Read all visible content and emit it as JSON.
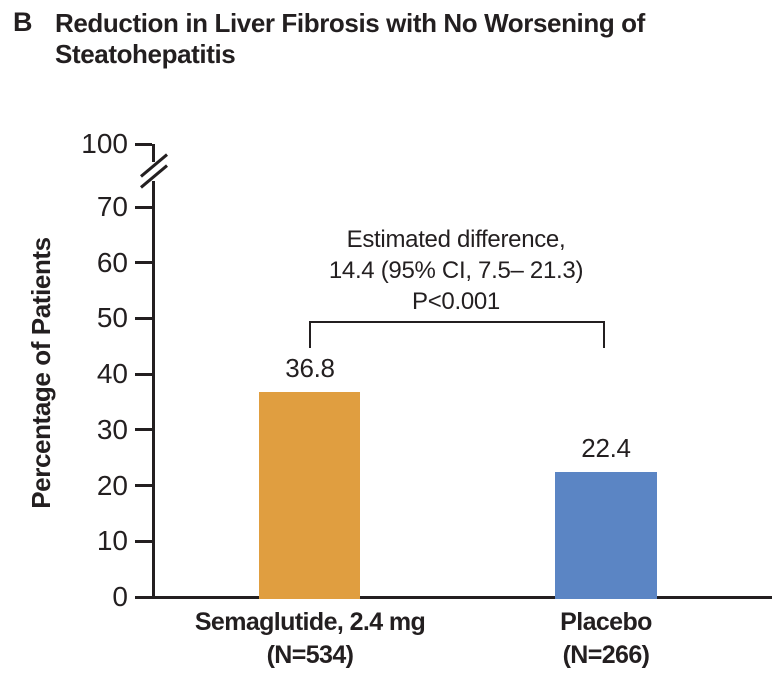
{
  "panel_label": "B",
  "title": {
    "line1": "Reduction in Liver Fibrosis with No Worsening of",
    "line2": "Steatohepatitis"
  },
  "chart_data": {
    "type": "bar",
    "title": "Reduction in Liver Fibrosis with No Worsening of Steatohepatitis",
    "ylabel": "Percentage of Patients",
    "ylim": [
      0,
      100
    ],
    "yticks": [
      100,
      70,
      60,
      50,
      40,
      30,
      20,
      10,
      0
    ],
    "axis_break_between": [
      70,
      100
    ],
    "grid": false,
    "legend": false,
    "bars": [
      {
        "category": "Semaglutide, 2.4 mg",
        "n": "(N=534)",
        "value": 36.8,
        "value_text": "36.8",
        "color": "#E09E40"
      },
      {
        "category": "Placebo",
        "n": "(N=266)",
        "value": 22.4,
        "value_text": "22.4",
        "color": "#5B85C4"
      }
    ],
    "comparison": {
      "line1": "Estimated difference,",
      "line2": "14.4 (95% CI, 7.5– 21.3)",
      "line3": "P<0.001"
    }
  },
  "colors": {
    "semaglutide_bar": "#E09E40",
    "placebo_bar": "#5B85C4",
    "ink": "#231F20",
    "background": "#FFFFFF"
  }
}
